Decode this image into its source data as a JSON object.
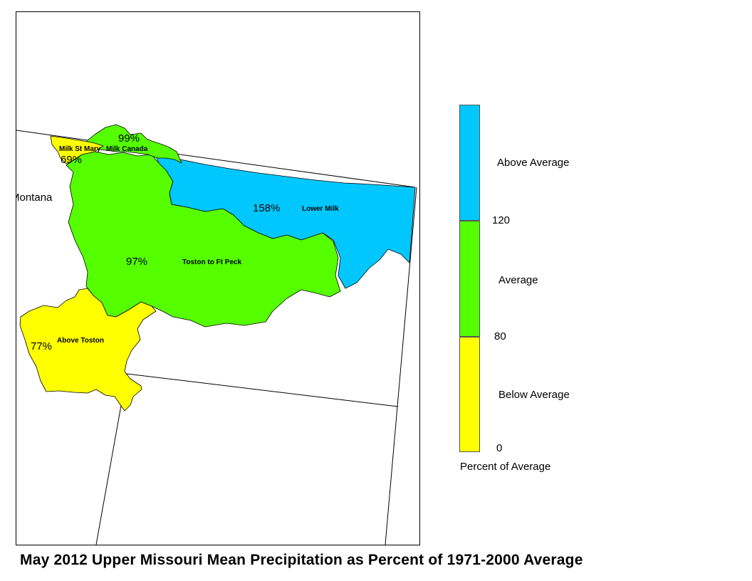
{
  "title": "May 2012 Upper Missouri Mean Precipitation as Percent of 1971-2000 Average",
  "map": {
    "state_label": "Montana",
    "basins": [
      {
        "name": "Milk St Mary",
        "percent": "69%",
        "category": "below",
        "color": "#ffff00"
      },
      {
        "name": "Milk Canada",
        "percent": "99%",
        "category": "average",
        "color": "#55ff00"
      },
      {
        "name": "Lower Milk",
        "percent": "158%",
        "category": "above",
        "color": "#00c8ff"
      },
      {
        "name": "Toston to Ft Peck",
        "percent": "97%",
        "category": "average",
        "color": "#55ff00"
      },
      {
        "name": "Above Toston",
        "percent": "77%",
        "category": "below",
        "color": "#ffff00"
      }
    ]
  },
  "legend": {
    "categories": [
      {
        "label": "Above Average",
        "color": "#00c8ff"
      },
      {
        "label": "Average",
        "color": "#55ff00"
      },
      {
        "label": "Below Average",
        "color": "#ffff00"
      }
    ],
    "breaks": [
      "120",
      "80",
      "0"
    ],
    "caption": "Percent of Average"
  }
}
